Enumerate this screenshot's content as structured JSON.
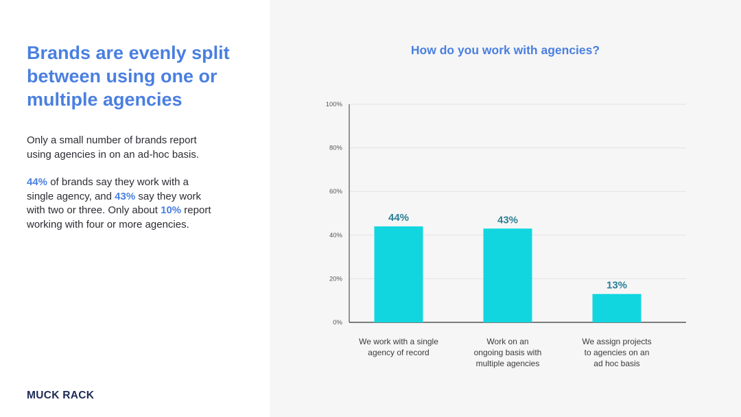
{
  "headline": [
    "Brands are evenly split",
    "between using one or",
    "multiple agencies"
  ],
  "paragraph1": [
    "Only a small number of brands report",
    "using agencies in on an ad-hoc basis."
  ],
  "paragraph2": {
    "line1": {
      "pre": "",
      "hl": "44%",
      "post": " of brands say they work with a"
    },
    "line2": {
      "pre": "single agency, and ",
      "hl": "43%",
      "post": " say they work"
    },
    "line3": {
      "pre": "with two or three. Only about ",
      "hl": "10%",
      "post": " report"
    },
    "line4": "working with four or more agencies."
  },
  "logo": "MUCK RACK",
  "colors": {
    "accent": "#4a7fe0",
    "bar": "#12d6df",
    "value_label": "#2a7f95"
  },
  "chart_data": {
    "type": "bar",
    "title": "How do you work with agencies?",
    "categories": [
      [
        "We work with a single",
        "agency of record"
      ],
      [
        "Work on an",
        "ongoing basis with",
        "multiple agencies"
      ],
      [
        "We assign projects",
        "to agencies on an",
        "ad hoc basis"
      ]
    ],
    "values": [
      44,
      43,
      13
    ],
    "value_labels": [
      "44%",
      "43%",
      "13%"
    ],
    "ylim": [
      0,
      100
    ],
    "yticks": [
      0,
      20,
      40,
      60,
      80,
      100
    ],
    "ytick_labels": [
      "0%",
      "20%",
      "40%",
      "60%",
      "80%",
      "100%"
    ],
    "grid": true,
    "xlabel": "",
    "ylabel": ""
  }
}
